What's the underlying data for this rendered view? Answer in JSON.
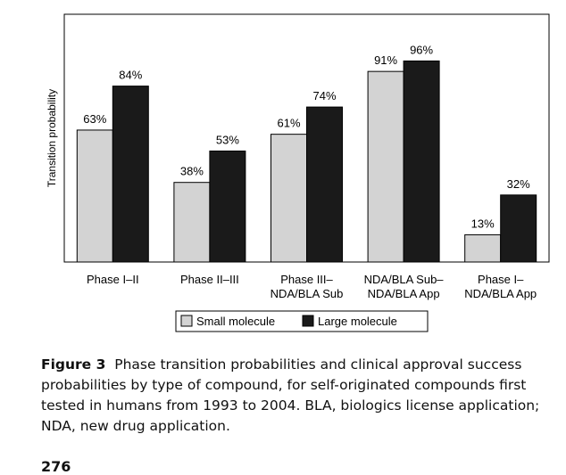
{
  "chart_data": {
    "type": "bar",
    "ylabel": "Transition probability",
    "xlabel": "",
    "ylim": [
      0,
      100
    ],
    "categories": [
      [
        "Phase I–II"
      ],
      [
        "Phase II–III"
      ],
      [
        "Phase III–",
        "NDA/BLA Sub"
      ],
      [
        "NDA/BLA Sub–",
        "NDA/BLA App"
      ],
      [
        "Phase I–",
        "NDA/BLA App"
      ]
    ],
    "series": [
      {
        "name": "Small molecule",
        "color": "#d3d3d3",
        "values": [
          63,
          38,
          61,
          91,
          13
        ],
        "labels": [
          "63%",
          "38%",
          "61%",
          "91%",
          "13%"
        ]
      },
      {
        "name": "Large molecule",
        "color": "#1a1a1a",
        "values": [
          84,
          53,
          74,
          96,
          32
        ],
        "labels": [
          "84%",
          "53%",
          "74%",
          "96%",
          "32%"
        ]
      }
    ],
    "legend": "bottom-center",
    "grid": false
  },
  "caption": {
    "figure_label": "Figure 3",
    "text": "Phase transition probabilities and clinical approval success probabilities by type of compound, for self-originated compounds first tested in humans from 1993 to 2004. BLA, biologics license application; NDA, new drug application."
  },
  "page_number": "276"
}
